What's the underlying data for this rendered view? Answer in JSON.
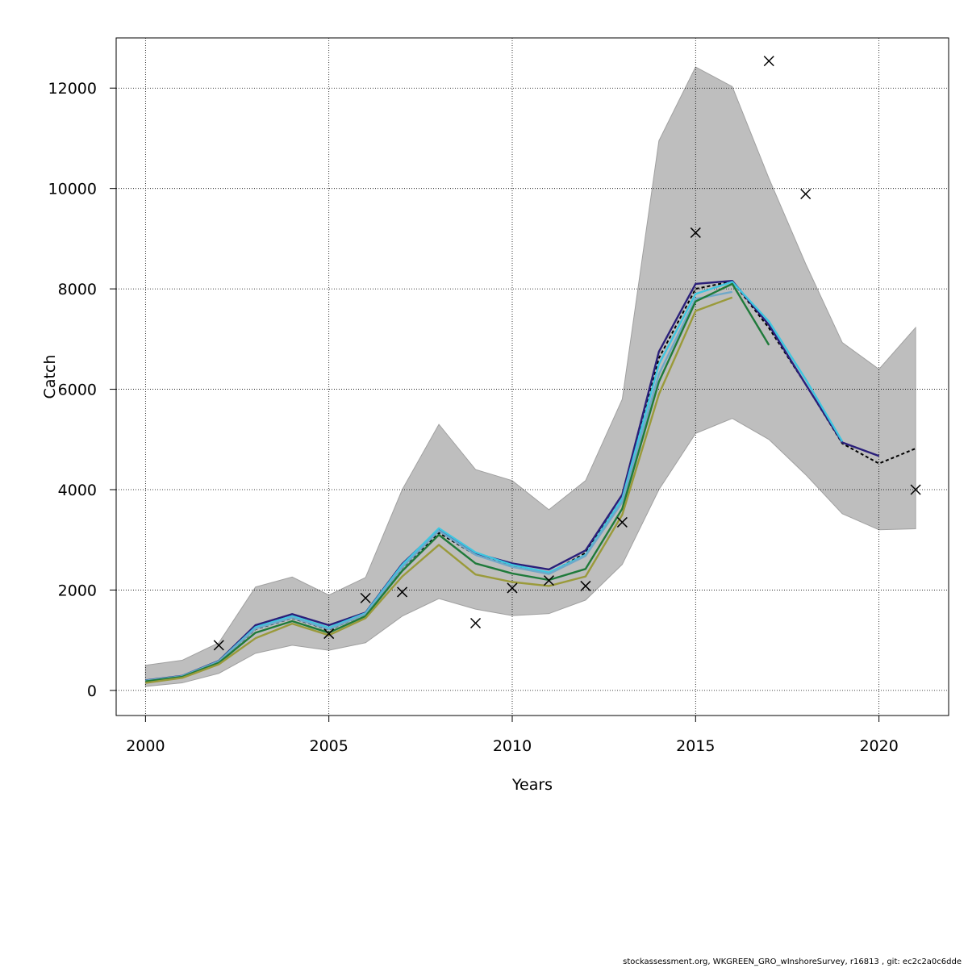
{
  "chart_data": {
    "type": "line",
    "title": "",
    "xlabel": "Years",
    "ylabel": "Catch",
    "xlim": [
      1999.2,
      2021.9
    ],
    "ylim": [
      -500,
      13000
    ],
    "x_ticks": [
      2000,
      2005,
      2010,
      2015,
      2020
    ],
    "y_ticks": [
      0,
      2000,
      4000,
      6000,
      8000,
      10000,
      12000
    ],
    "grid": true,
    "legend": "none",
    "band": {
      "x": [
        2000,
        2001,
        2002,
        2003,
        2004,
        2005,
        2006,
        2007,
        2008,
        2009,
        2010,
        2011,
        2012,
        2013,
        2014,
        2015,
        2016,
        2017,
        2018,
        2019,
        2020,
        2021
      ],
      "upper": [
        500,
        600,
        950,
        2060,
        2260,
        1900,
        2250,
        4000,
        5300,
        4400,
        4180,
        3600,
        4180,
        5800,
        10950,
        12420,
        12030,
        10200,
        8500,
        6930,
        6400,
        7230
      ],
      "lower": [
        80,
        150,
        340,
        740,
        900,
        800,
        950,
        1480,
        1830,
        1620,
        1490,
        1530,
        1800,
        2510,
        4000,
        5120,
        5420,
        5000,
        4300,
        3520,
        3200,
        3220
      ],
      "color": "#bebebe"
    },
    "observed": {
      "x": [
        2002,
        2005,
        2006,
        2007,
        2009,
        2010,
        2011,
        2012,
        2013,
        2015,
        2017,
        2018,
        2021
      ],
      "y": [
        900,
        1130,
        1840,
        1960,
        1340,
        2040,
        2190,
        2080,
        3350,
        9120,
        12540,
        9890,
        4000
      ],
      "marker": "x",
      "color": "#000000"
    },
    "series": [
      {
        "color": "#000000",
        "dash": true,
        "x": [
          2000,
          2001,
          2002,
          2003,
          2004,
          2005,
          2006,
          2007,
          2008,
          2009,
          2010,
          2011,
          2012,
          2013,
          2014,
          2015,
          2016,
          2017,
          2018,
          2019,
          2020,
          2021
        ],
        "y": [
          190,
          280,
          570,
          1220,
          1440,
          1210,
          1520,
          2440,
          3140,
          2700,
          2480,
          2330,
          2740,
          3820,
          6620,
          8000,
          8150,
          7220,
          6100,
          4920,
          4520,
          4820
        ]
      },
      {
        "color": "#2a1f7a",
        "dash": false,
        "x": [
          2000,
          2001,
          2002,
          2003,
          2004,
          2005,
          2006,
          2007,
          2008,
          2009,
          2010,
          2011,
          2012,
          2013,
          2014,
          2015,
          2016,
          2017,
          2018,
          2019,
          2020
        ],
        "y": [
          200,
          290,
          590,
          1300,
          1520,
          1300,
          1550,
          2520,
          3210,
          2730,
          2530,
          2410,
          2790,
          3900,
          6750,
          8100,
          8160,
          7280,
          6100,
          4940,
          4670
        ]
      },
      {
        "color": "#3ec6e0",
        "dash": false,
        "x": [
          2000,
          2001,
          2002,
          2003,
          2004,
          2005,
          2006,
          2007,
          2008,
          2009,
          2010,
          2011,
          2012,
          2013,
          2014,
          2015,
          2016,
          2017,
          2018,
          2019
        ],
        "y": [
          195,
          285,
          580,
          1260,
          1480,
          1250,
          1540,
          2500,
          3230,
          2750,
          2500,
          2350,
          2700,
          3820,
          6500,
          7900,
          8140,
          7350,
          6200,
          4960
        ]
      },
      {
        "color": "#6fa8c8",
        "dash": false,
        "x": [
          2000,
          2001,
          2002,
          2003,
          2004,
          2005,
          2006,
          2007,
          2008,
          2009,
          2010,
          2011,
          2012,
          2013,
          2014,
          2015,
          2016
        ],
        "y": [
          190,
          280,
          575,
          1230,
          1450,
          1220,
          1520,
          2450,
          3180,
          2700,
          2460,
          2320,
          2680,
          3750,
          6300,
          7800,
          7940
        ]
      },
      {
        "color": "#1f7a3a",
        "dash": false,
        "x": [
          2000,
          2001,
          2002,
          2003,
          2004,
          2005,
          2006,
          2007,
          2008,
          2009,
          2010,
          2011,
          2012,
          2013,
          2014,
          2015,
          2016,
          2017
        ],
        "y": [
          180,
          270,
          550,
          1150,
          1380,
          1150,
          1480,
          2380,
          3100,
          2530,
          2330,
          2200,
          2420,
          3620,
          6150,
          7750,
          8100,
          6880
        ]
      },
      {
        "color": "#9a9a3a",
        "dash": false,
        "x": [
          2000,
          2001,
          2002,
          2003,
          2004,
          2005,
          2006,
          2007,
          2008,
          2009,
          2010,
          2011,
          2012,
          2013,
          2014,
          2015,
          2016
        ],
        "y": [
          150,
          250,
          520,
          1040,
          1330,
          1100,
          1440,
          2270,
          2900,
          2310,
          2160,
          2080,
          2270,
          3500,
          5900,
          7560,
          7830
        ]
      }
    ]
  },
  "footer": "stockassessment.org, WKGREEN_GRO_wInshoreSurvey, r16813 , git: ec2c2a0c6dde"
}
